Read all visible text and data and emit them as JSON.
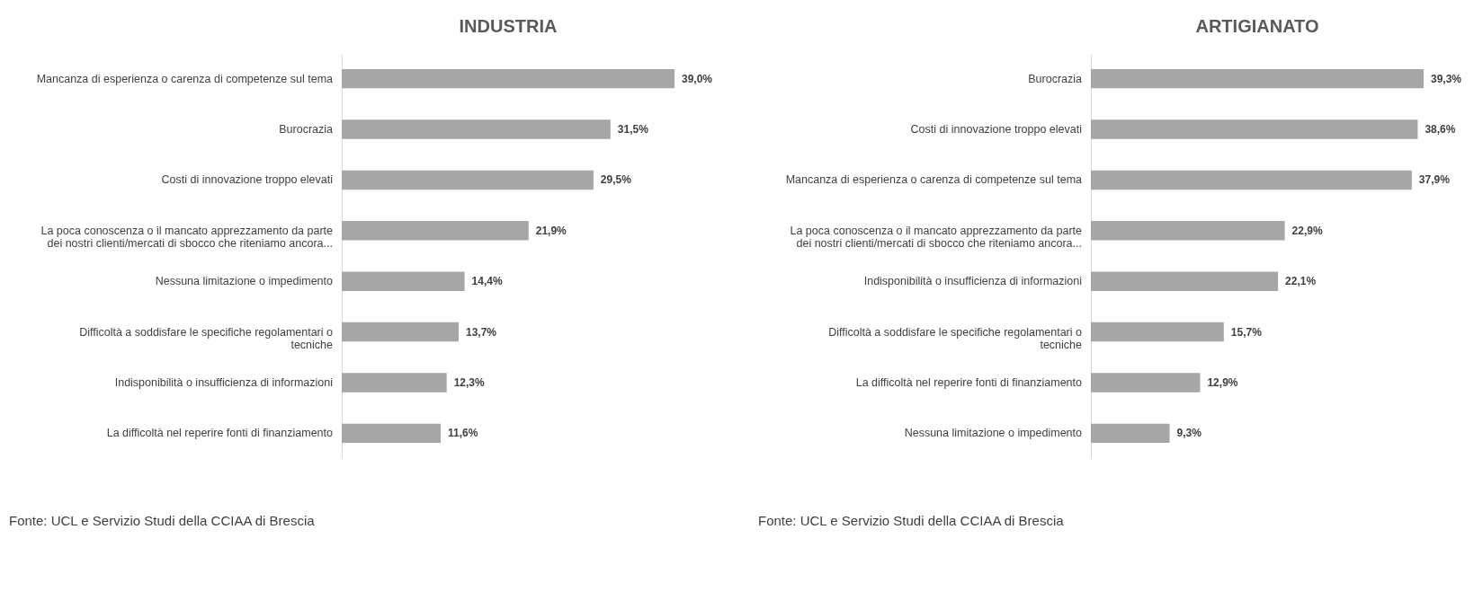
{
  "chart_data": [
    {
      "type": "bar",
      "orientation": "horizontal",
      "title": "INDUSTRIA",
      "categories": [
        "Mancanza di esperienza o carenza di competenze sul tema",
        "Burocrazia",
        "Costi di innovazione troppo elevati",
        "La poca conoscenza o il mancato apprezzamento da parte\ndei nostri clienti/mercati di sbocco che riteniamo ancora...",
        "Nessuna limitazione o impedimento",
        "Difficoltà a soddisfare le specifiche regolamentari o\ntecniche",
        "Indisponibilità o insufficienza di informazioni",
        "La difficoltà nel reperire fonti di finanziamento"
      ],
      "values": [
        39.0,
        31.5,
        29.5,
        21.9,
        14.4,
        13.7,
        12.3,
        11.6
      ],
      "value_labels": [
        "39,0%",
        "31,5%",
        "29,5%",
        "21,9%",
        "14,4%",
        "13,7%",
        "12,3%",
        "11,6%"
      ],
      "color": "#a6a6a6",
      "grid": false,
      "annotations": [
        "Fonte: UCL e Servizio Studi della CCIAA di Brescia"
      ]
    },
    {
      "type": "bar",
      "orientation": "horizontal",
      "title": "ARTIGIANATO",
      "categories": [
        "Burocrazia",
        "Costi di innovazione troppo elevati",
        "Mancanza di esperienza o carenza di competenze sul tema",
        "La poca conoscenza o il mancato apprezzamento da parte\ndei nostri clienti/mercati di sbocco che riteniamo ancora...",
        "Indisponibilità o insufficienza di informazioni",
        "Difficoltà a soddisfare le specifiche regolamentari o\ntecniche",
        "La difficoltà nel reperire fonti di finanziamento",
        "Nessuna limitazione o impedimento"
      ],
      "values": [
        39.3,
        38.6,
        37.9,
        22.9,
        22.1,
        15.7,
        12.9,
        9.3
      ],
      "value_labels": [
        "39,3%",
        "38,6%",
        "37,9%",
        "22,9%",
        "22,1%",
        "15,7%",
        "12,9%",
        "9,3%"
      ],
      "color": "#a6a6a6",
      "grid": false,
      "annotations": [
        "Fonte: UCL e Servizio Studi della CCIAA di Brescia"
      ]
    }
  ]
}
